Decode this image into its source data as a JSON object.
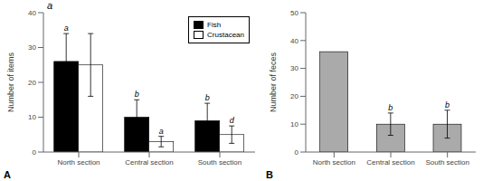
{
  "chart_data": [
    {
      "type": "bar",
      "title": "a",
      "ylabel": "Number of items",
      "categories": [
        "North section",
        "Central section",
        "South section"
      ],
      "series": [
        {
          "name": "Fish",
          "color": "#000000",
          "values": [
            26,
            10,
            9
          ],
          "errors": [
            8,
            5,
            5
          ]
        },
        {
          "name": "Crustacean",
          "color": "#ffffff",
          "values": [
            25,
            3,
            5
          ],
          "errors": [
            9,
            1.5,
            2.5
          ]
        }
      ],
      "ylim": [
        0,
        40
      ],
      "yticks": [
        0,
        10,
        20,
        30,
        40
      ],
      "legend": "upper right",
      "annotations": [
        {
          "text": "A"
        },
        {
          "text": "a",
          "series": "Fish",
          "category": "North section"
        },
        {
          "text": "b",
          "series": "Fish",
          "category": "Central section"
        },
        {
          "text": "b",
          "series": "Fish",
          "category": "South section"
        },
        {
          "text": "a",
          "series": "Crustacean",
          "category": "Central section"
        },
        {
          "text": "d",
          "series": "Crustacean",
          "category": "South section"
        }
      ]
    },
    {
      "type": "bar",
      "ylabel": "Number of feces",
      "categories": [
        "North section",
        "Central section",
        "South section"
      ],
      "values": [
        36,
        10,
        10
      ],
      "errors": [
        0,
        4,
        5
      ],
      "color": "#aaaaaa",
      "ylim": [
        0,
        50
      ],
      "yticks": [
        0,
        10,
        20,
        30,
        40,
        50
      ],
      "annotations": [
        {
          "text": "B"
        },
        {
          "text": "b",
          "category": "Central section"
        },
        {
          "text": "b",
          "category": "South section"
        }
      ]
    }
  ]
}
